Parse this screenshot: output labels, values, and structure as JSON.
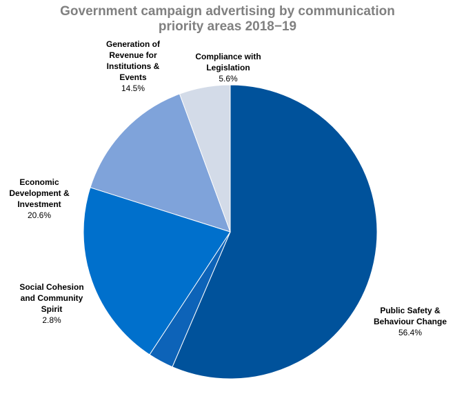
{
  "chart_data": {
    "type": "pie",
    "title": "Government campaign advertising by communication priority areas 2018−19",
    "categories": [
      "Public Safety & Behaviour Change",
      "Social Cohesion and Community Spirit",
      "Economic Development & Investment",
      "Generation of Revenue for Institutions & Events",
      "Compliance with Legislation"
    ],
    "values": [
      56.4,
      2.8,
      20.6,
      14.5,
      5.6
    ],
    "value_labels": [
      "56.4%",
      "2.8%",
      "20.6%",
      "14.5%",
      "5.6%"
    ],
    "colors": [
      "#00529b",
      "#0d63b8",
      "#0070cc",
      "#7fa3da",
      "#d3dbe8"
    ]
  }
}
